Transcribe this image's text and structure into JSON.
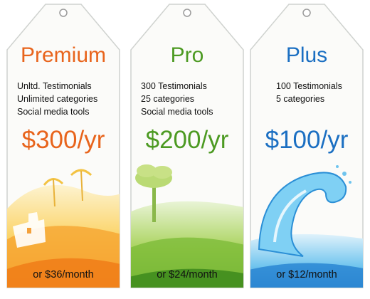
{
  "plans": [
    {
      "name": "Premium",
      "features": [
        "Unltd. Testimonials",
        "Unlimited categories",
        "Social media tools"
      ],
      "price": "$300/yr",
      "monthly": "or $36/month",
      "accent": "#e8641c",
      "illustration": "sandcastle-beach-icon"
    },
    {
      "name": "Pro",
      "features": [
        "300 Testimonials",
        "25 categories",
        "Social media tools"
      ],
      "price": "$200/yr",
      "monthly": "or $24/month",
      "accent": "#4c9a22",
      "illustration": "tree-meadow-icon"
    },
    {
      "name": "Plus",
      "features": [
        "100 Testimonials",
        "5 categories"
      ],
      "price": "$100/yr",
      "monthly": "or $12/month",
      "accent": "#1b6fc2",
      "illustration": "water-wave-icon"
    }
  ]
}
